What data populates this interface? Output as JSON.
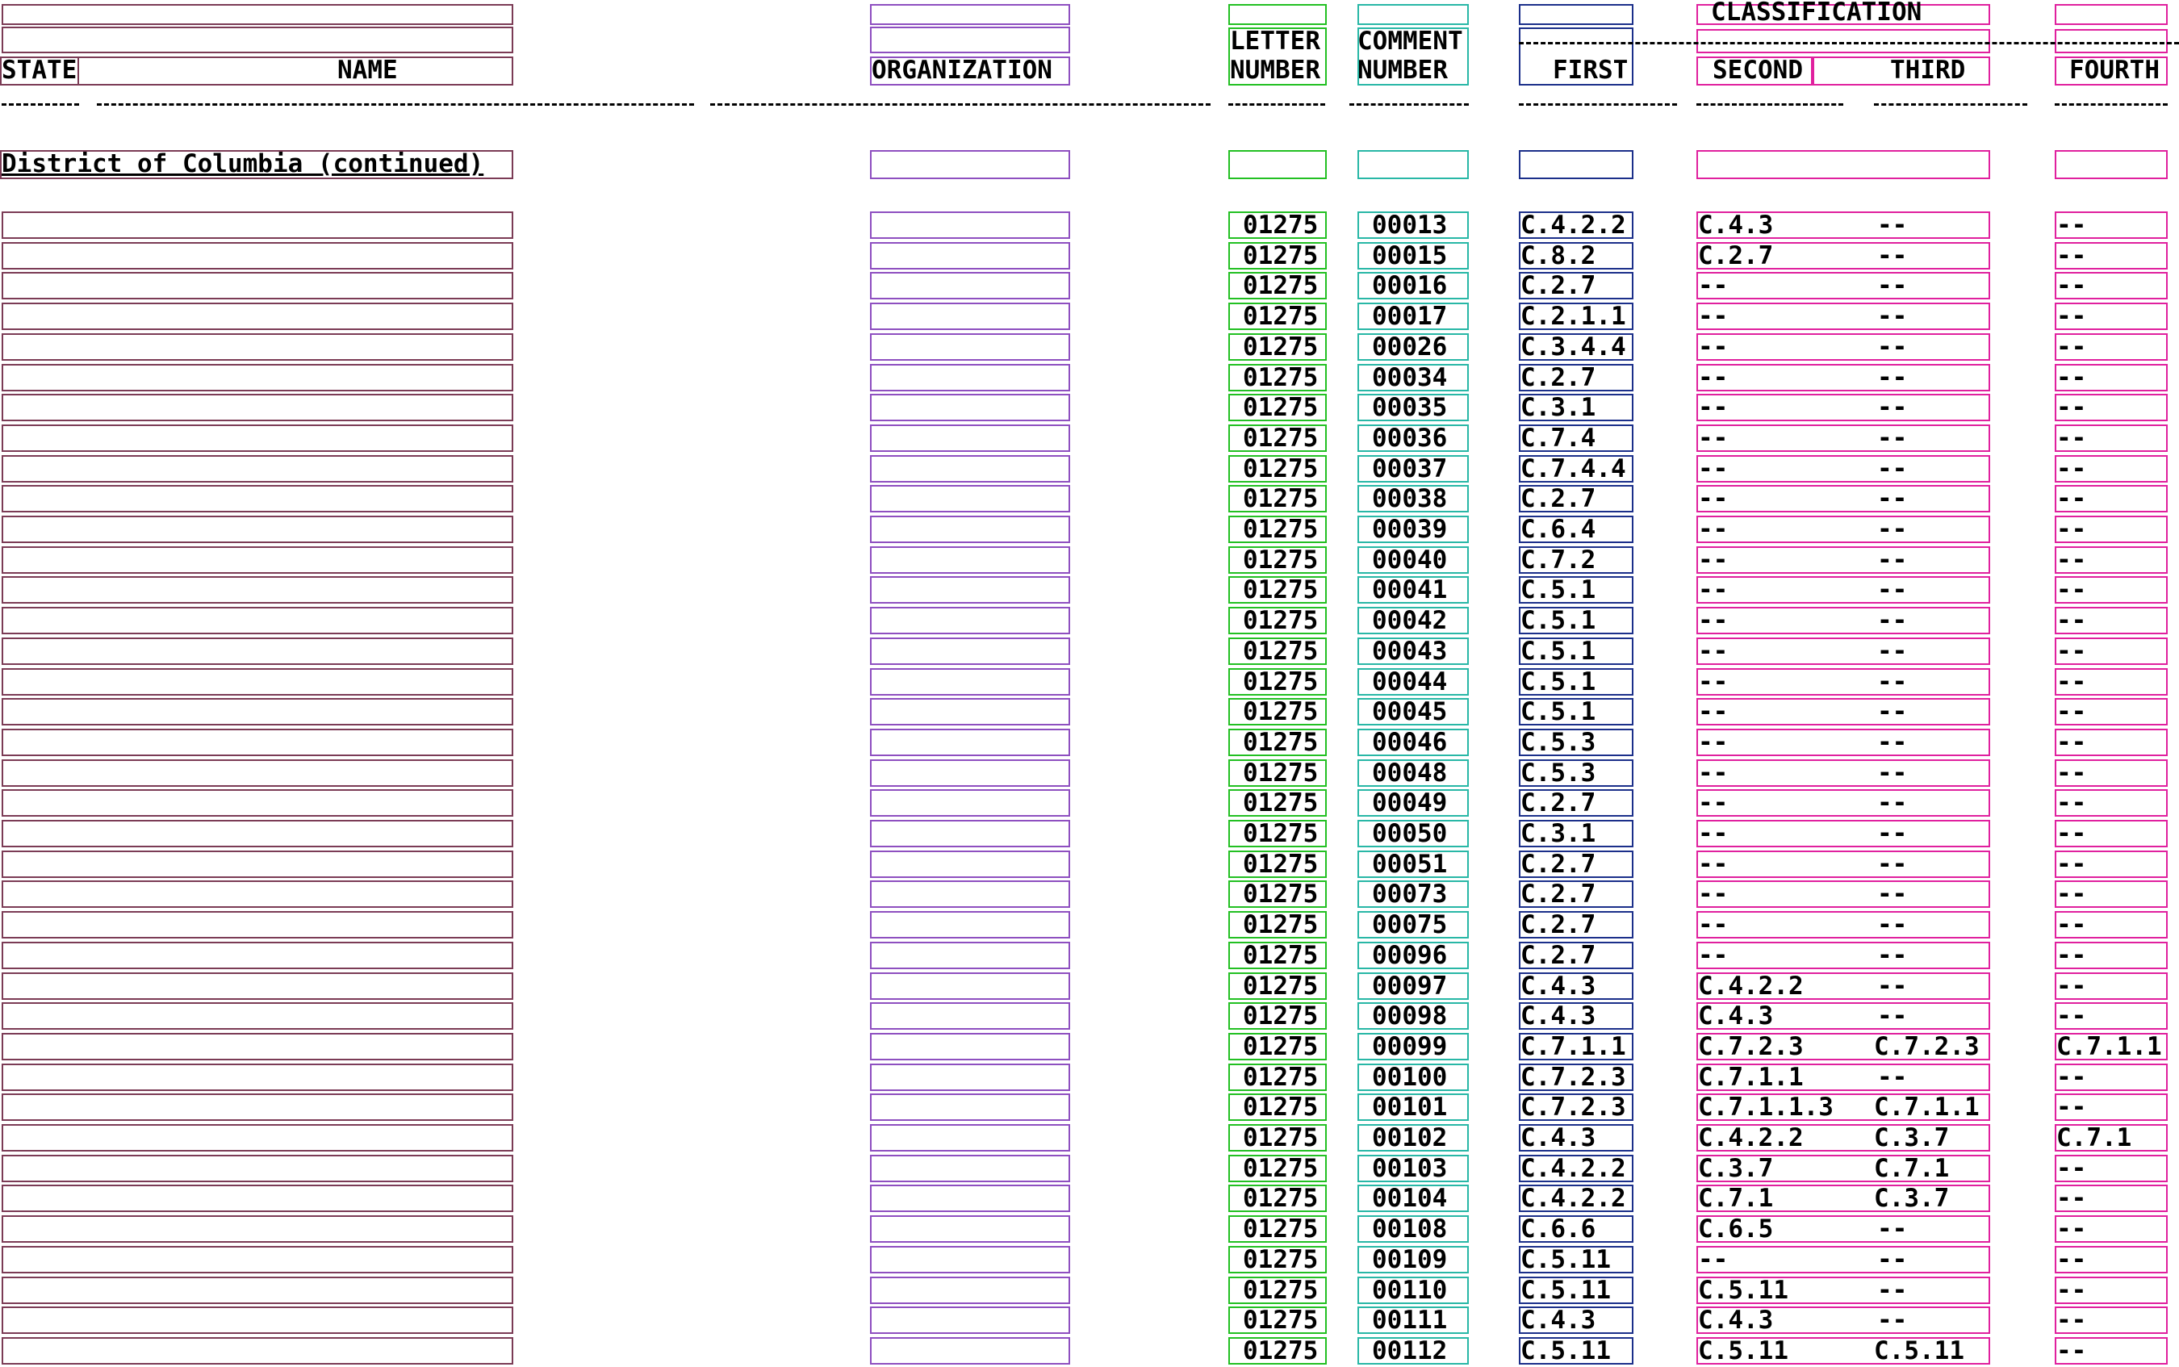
{
  "header": {
    "state": "STATE",
    "name": "NAME",
    "organization": "ORGANIZATION",
    "letter_line1": "LETTER",
    "letter_line2": "NUMBER",
    "comment_line1": "COMMENT",
    "comment_line2": "NUMBER",
    "classification": "CLASSIFICATION",
    "first": "FIRST",
    "second": "SECOND",
    "third": "THIRD",
    "fourth": "FOURTH"
  },
  "section_heading": "District of Columbia (continued)",
  "colors": {
    "state": "#7b3b55",
    "organization": "#8e4fc0",
    "letter": "#22c022",
    "comment": "#28b7a6",
    "first": "#1b2f8a",
    "classification": "#e0209e"
  },
  "rows": [
    {
      "letter": "01275",
      "comment": "00013",
      "first": "C.4.2.2",
      "second": "C.4.3",
      "third": "--",
      "fourth": "--"
    },
    {
      "letter": "01275",
      "comment": "00015",
      "first": "C.8.2",
      "second": "C.2.7",
      "third": "--",
      "fourth": "--"
    },
    {
      "letter": "01275",
      "comment": "00016",
      "first": "C.2.7",
      "second": "--",
      "third": "--",
      "fourth": "--"
    },
    {
      "letter": "01275",
      "comment": "00017",
      "first": "C.2.1.1",
      "second": "--",
      "third": "--",
      "fourth": "--"
    },
    {
      "letter": "01275",
      "comment": "00026",
      "first": "C.3.4.4",
      "second": "--",
      "third": "--",
      "fourth": "--"
    },
    {
      "letter": "01275",
      "comment": "00034",
      "first": "C.2.7",
      "second": "--",
      "third": "--",
      "fourth": "--"
    },
    {
      "letter": "01275",
      "comment": "00035",
      "first": "C.3.1",
      "second": "--",
      "third": "--",
      "fourth": "--"
    },
    {
      "letter": "01275",
      "comment": "00036",
      "first": "C.7.4",
      "second": "--",
      "third": "--",
      "fourth": "--"
    },
    {
      "letter": "01275",
      "comment": "00037",
      "first": "C.7.4.4",
      "second": "--",
      "third": "--",
      "fourth": "--"
    },
    {
      "letter": "01275",
      "comment": "00038",
      "first": "C.2.7",
      "second": "--",
      "third": "--",
      "fourth": "--"
    },
    {
      "letter": "01275",
      "comment": "00039",
      "first": "C.6.4",
      "second": "--",
      "third": "--",
      "fourth": "--"
    },
    {
      "letter": "01275",
      "comment": "00040",
      "first": "C.7.2",
      "second": "--",
      "third": "--",
      "fourth": "--"
    },
    {
      "letter": "01275",
      "comment": "00041",
      "first": "C.5.1",
      "second": "--",
      "third": "--",
      "fourth": "--"
    },
    {
      "letter": "01275",
      "comment": "00042",
      "first": "C.5.1",
      "second": "--",
      "third": "--",
      "fourth": "--"
    },
    {
      "letter": "01275",
      "comment": "00043",
      "first": "C.5.1",
      "second": "--",
      "third": "--",
      "fourth": "--"
    },
    {
      "letter": "01275",
      "comment": "00044",
      "first": "C.5.1",
      "second": "--",
      "third": "--",
      "fourth": "--"
    },
    {
      "letter": "01275",
      "comment": "00045",
      "first": "C.5.1",
      "second": "--",
      "third": "--",
      "fourth": "--"
    },
    {
      "letter": "01275",
      "comment": "00046",
      "first": "C.5.3",
      "second": "--",
      "third": "--",
      "fourth": "--"
    },
    {
      "letter": "01275",
      "comment": "00048",
      "first": "C.5.3",
      "second": "--",
      "third": "--",
      "fourth": "--"
    },
    {
      "letter": "01275",
      "comment": "00049",
      "first": "C.2.7",
      "second": "--",
      "third": "--",
      "fourth": "--"
    },
    {
      "letter": "01275",
      "comment": "00050",
      "first": "C.3.1",
      "second": "--",
      "third": "--",
      "fourth": "--"
    },
    {
      "letter": "01275",
      "comment": "00051",
      "first": "C.2.7",
      "second": "--",
      "third": "--",
      "fourth": "--"
    },
    {
      "letter": "01275",
      "comment": "00073",
      "first": "C.2.7",
      "second": "--",
      "third": "--",
      "fourth": "--"
    },
    {
      "letter": "01275",
      "comment": "00075",
      "first": "C.2.7",
      "second": "--",
      "third": "--",
      "fourth": "--"
    },
    {
      "letter": "01275",
      "comment": "00096",
      "first": "C.2.7",
      "second": "--",
      "third": "--",
      "fourth": "--"
    },
    {
      "letter": "01275",
      "comment": "00097",
      "first": "C.4.3",
      "second": "C.4.2.2",
      "third": "--",
      "fourth": "--"
    },
    {
      "letter": "01275",
      "comment": "00098",
      "first": "C.4.3",
      "second": "C.4.3",
      "third": "--",
      "fourth": "--"
    },
    {
      "letter": "01275",
      "comment": "00099",
      "first": "C.7.1.1",
      "second": "C.7.2.3",
      "third": "C.7.2.3",
      "fourth": "C.7.1.1"
    },
    {
      "letter": "01275",
      "comment": "00100",
      "first": "C.7.2.3",
      "second": "C.7.1.1",
      "third": "--",
      "fourth": "--"
    },
    {
      "letter": "01275",
      "comment": "00101",
      "first": "C.7.2.3",
      "second": "C.7.1.1.3",
      "third": "C.7.1.1",
      "fourth": "--"
    },
    {
      "letter": "01275",
      "comment": "00102",
      "first": "C.4.3",
      "second": "C.4.2.2",
      "third": "C.3.7",
      "fourth": "C.7.1"
    },
    {
      "letter": "01275",
      "comment": "00103",
      "first": "C.4.2.2",
      "second": "C.3.7",
      "third": "C.7.1",
      "fourth": "--"
    },
    {
      "letter": "01275",
      "comment": "00104",
      "first": "C.4.2.2",
      "second": "C.7.1",
      "third": "C.3.7",
      "fourth": "--"
    },
    {
      "letter": "01275",
      "comment": "00108",
      "first": "C.6.6",
      "second": "C.6.5",
      "third": "--",
      "fourth": "--"
    },
    {
      "letter": "01275",
      "comment": "00109",
      "first": "C.5.11",
      "second": "--",
      "third": "--",
      "fourth": "--"
    },
    {
      "letter": "01275",
      "comment": "00110",
      "first": "C.5.11",
      "second": "C.5.11",
      "third": "--",
      "fourth": "--"
    },
    {
      "letter": "01275",
      "comment": "00111",
      "first": "C.4.3",
      "second": "C.4.3",
      "third": "--",
      "fourth": "--"
    },
    {
      "letter": "01275",
      "comment": "00112",
      "first": "C.5.11",
      "second": "C.5.11",
      "third": "C.5.11",
      "fourth": "--"
    }
  ]
}
